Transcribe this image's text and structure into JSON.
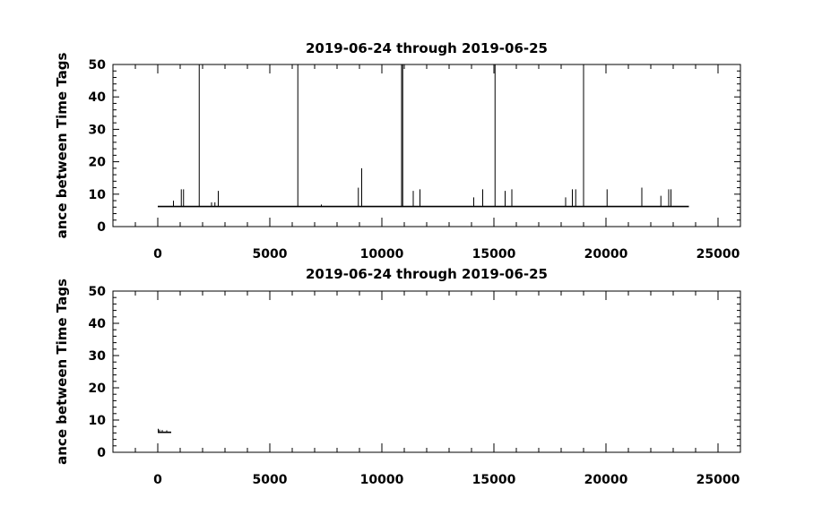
{
  "chart_data": [
    {
      "type": "line",
      "title": "2019-06-24 through 2019-06-25",
      "ylabel": "ance between Time Tags",
      "xlabel": "",
      "xlim": [
        -2000,
        26000
      ],
      "ylim": [
        0,
        50
      ],
      "x_ticks": [
        0,
        5000,
        10000,
        15000,
        20000,
        25000
      ],
      "y_ticks": [
        0,
        10,
        20,
        30,
        40,
        50
      ],
      "grid": false,
      "baseline": {
        "x": [
          0,
          23700
        ],
        "y": 6.2
      },
      "spikes": [
        {
          "x": 700,
          "y": 8
        },
        {
          "x": 1050,
          "y": 11.5
        },
        {
          "x": 1150,
          "y": 11.5
        },
        {
          "x": 1850,
          "y": 50
        },
        {
          "x": 2400,
          "y": 7.5
        },
        {
          "x": 2550,
          "y": 7.5
        },
        {
          "x": 2700,
          "y": 11
        },
        {
          "x": 6250,
          "y": 50
        },
        {
          "x": 7300,
          "y": 6.8
        },
        {
          "x": 8950,
          "y": 12
        },
        {
          "x": 9100,
          "y": 18
        },
        {
          "x": 10880,
          "y": 50
        },
        {
          "x": 10930,
          "y": 50
        },
        {
          "x": 11400,
          "y": 11
        },
        {
          "x": 11700,
          "y": 11.5
        },
        {
          "x": 14100,
          "y": 9
        },
        {
          "x": 14500,
          "y": 11.5
        },
        {
          "x": 15050,
          "y": 50
        },
        {
          "x": 15500,
          "y": 11
        },
        {
          "x": 15800,
          "y": 11.5
        },
        {
          "x": 18200,
          "y": 9
        },
        {
          "x": 18500,
          "y": 11.5
        },
        {
          "x": 18650,
          "y": 11.5
        },
        {
          "x": 19000,
          "y": 50
        },
        {
          "x": 20050,
          "y": 11.5
        },
        {
          "x": 21600,
          "y": 12
        },
        {
          "x": 22450,
          "y": 9.5
        },
        {
          "x": 22800,
          "y": 11.5
        },
        {
          "x": 22900,
          "y": 11.5
        }
      ]
    },
    {
      "type": "line",
      "title": "2019-06-24 through 2019-06-25",
      "ylabel": "ance between Time Tags",
      "xlabel": "",
      "xlim": [
        -2000,
        26000
      ],
      "ylim": [
        0,
        50
      ],
      "x_ticks": [
        0,
        5000,
        10000,
        15000,
        20000,
        25000
      ],
      "y_ticks": [
        0,
        10,
        20,
        30,
        40,
        50
      ],
      "grid": false,
      "baseline": {
        "x": [
          0,
          600
        ],
        "y": 6.2
      },
      "spikes": [
        {
          "x": 20,
          "y": 7.3
        },
        {
          "x": 80,
          "y": 7
        },
        {
          "x": 200,
          "y": 6.9
        },
        {
          "x": 400,
          "y": 6.8
        }
      ]
    }
  ]
}
